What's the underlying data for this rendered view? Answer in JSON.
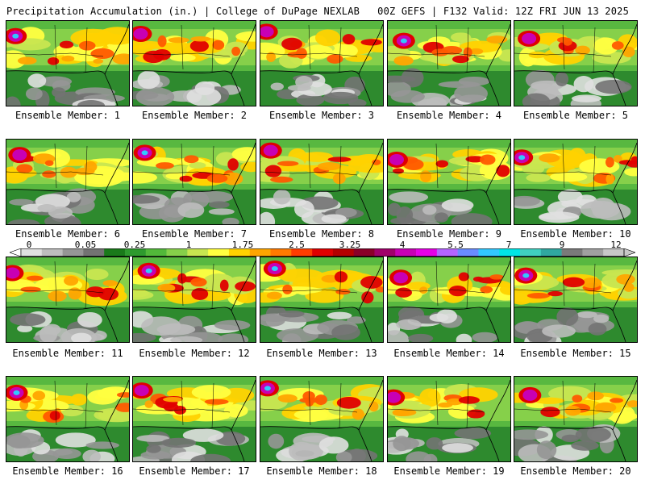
{
  "header": {
    "title_left": "Precipitation Accumulation (in.) | College of DuPage NEXLAB",
    "title_right": "00Z GEFS | F132 Valid: 12Z FRI JUN 13 2025"
  },
  "panels": [
    {
      "label": "Ensemble Member: 1"
    },
    {
      "label": "Ensemble Member: 2"
    },
    {
      "label": "Ensemble Member: 3"
    },
    {
      "label": "Ensemble Member: 4"
    },
    {
      "label": "Ensemble Member: 5"
    },
    {
      "label": "Ensemble Member: 6"
    },
    {
      "label": "Ensemble Member: 7"
    },
    {
      "label": "Ensemble Member: 8"
    },
    {
      "label": "Ensemble Member: 9"
    },
    {
      "label": "Ensemble Member: 10"
    },
    {
      "label": "Ensemble Member: 11"
    },
    {
      "label": "Ensemble Member: 12"
    },
    {
      "label": "Ensemble Member: 13"
    },
    {
      "label": "Ensemble Member: 14"
    },
    {
      "label": "Ensemble Member: 15"
    },
    {
      "label": "Ensemble Member: 16"
    },
    {
      "label": "Ensemble Member: 17"
    },
    {
      "label": "Ensemble Member: 18"
    },
    {
      "label": "Ensemble Member: 19"
    },
    {
      "label": "Ensemble Member: 20"
    }
  ],
  "colorbar": {
    "tick_labels": [
      "0",
      "0.05",
      "0.25",
      "1",
      "1.75",
      "2.5",
      "3.25",
      "4",
      "5.5",
      "7",
      "9",
      "12"
    ],
    "colors": [
      "#e0e0e0",
      "#bdbdbd",
      "#969696",
      "#737373",
      "#1a7a1a",
      "#2e9a2e",
      "#52b83a",
      "#86d04a",
      "#c8e650",
      "#ffff40",
      "#ffd200",
      "#ffa500",
      "#ff7a00",
      "#ff3c00",
      "#e00000",
      "#b40000",
      "#8a0028",
      "#a0006a",
      "#c800b4",
      "#e600e6",
      "#b464ff",
      "#6a8cff",
      "#32c8ff",
      "#00e6e6",
      "#40d0c0",
      "#30a8a0",
      "#7a7a7a",
      "#a0a0a0",
      "#c8c8c8"
    ]
  }
}
